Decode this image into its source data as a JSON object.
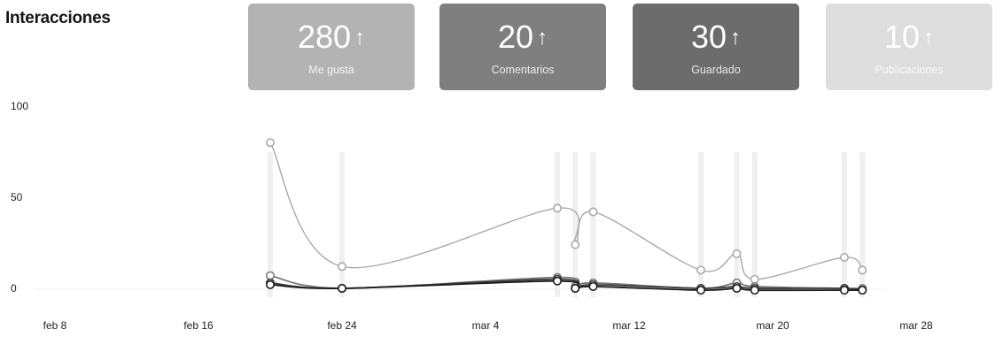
{
  "header": {
    "title": "Interacciones"
  },
  "cards": [
    {
      "value": "280",
      "label": "Me gusta",
      "color": "#b3b3b3"
    },
    {
      "value": "20",
      "label": "Comentarios",
      "color": "#7f7f7f"
    },
    {
      "value": "30",
      "label": "Guardado",
      "color": "#6c6c6c"
    },
    {
      "value": "10",
      "label": "Publicaciones",
      "color": "#dddddd"
    }
  ],
  "arrow_glyph": "↑",
  "chart_data": {
    "type": "line",
    "title": "",
    "xlabel": "",
    "ylabel": "",
    "ylim": [
      0,
      100
    ],
    "y_ticks": [
      0,
      50,
      100
    ],
    "x_ticks": [
      "feb 8",
      "feb 16",
      "feb 24",
      "mar 4",
      "mar 12",
      "mar 20",
      "mar 28"
    ],
    "x_dates": [
      "feb 20",
      "feb 24",
      "mar 8",
      "mar 9",
      "mar 10",
      "mar 16",
      "mar 18",
      "mar 19",
      "mar 24",
      "mar 25"
    ],
    "publication_markers": [
      "feb 20",
      "feb 24",
      "mar 8",
      "mar 9",
      "mar 10",
      "mar 16",
      "mar 18",
      "mar 19",
      "mar 24",
      "mar 25"
    ],
    "series": [
      {
        "color": "#a9a9a9",
        "values": [
          80,
          12,
          44,
          24,
          42,
          10,
          19,
          5,
          17,
          10
        ]
      },
      {
        "color": "#787878",
        "values": [
          7,
          0,
          6,
          1,
          3,
          0,
          3,
          1,
          0,
          0
        ]
      },
      {
        "color": "#3c3c3c",
        "values": [
          3,
          0,
          5,
          0,
          2,
          0,
          1,
          0,
          0,
          -1
        ]
      },
      {
        "color": "#1e1e1e",
        "values": [
          2,
          0,
          4,
          0,
          1,
          -1,
          0,
          -1,
          -1,
          -1
        ]
      }
    ],
    "grid": false,
    "legend": "none"
  }
}
